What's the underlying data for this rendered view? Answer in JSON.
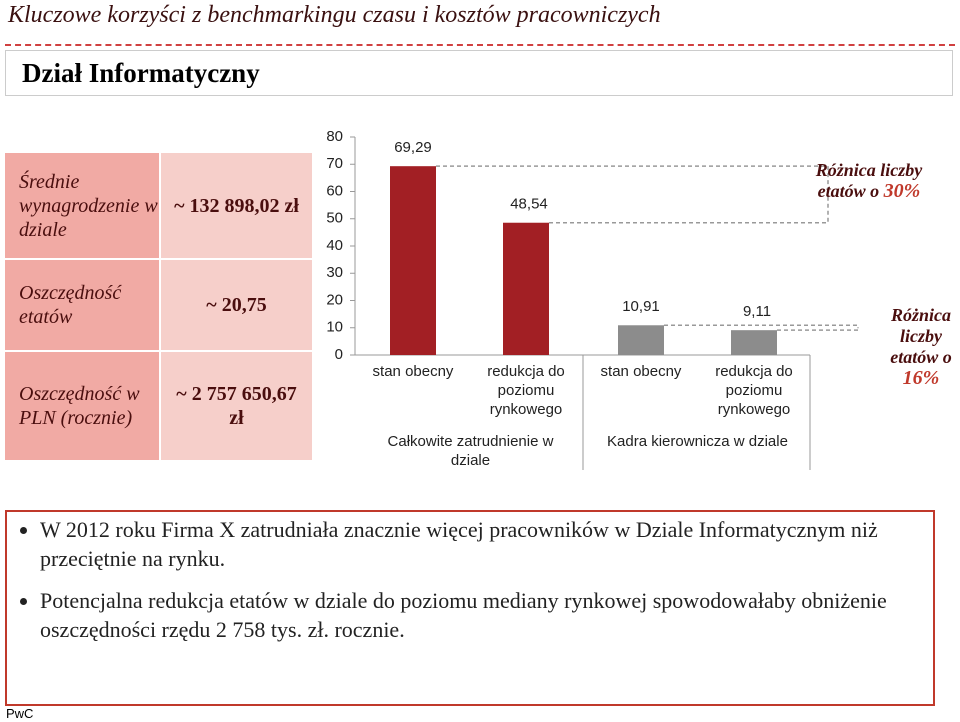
{
  "header": {
    "title": "Kluczowe korzyści z benchmarkingu czasu i kosztów pracowniczych",
    "section": "Dział Informatyczny"
  },
  "table": {
    "rows": [
      [
        "Średnie wynagrodzenie w dziale",
        "~ 132 898,02 zł"
      ],
      [
        "Oszczędność etatów",
        "~ 20,75"
      ],
      [
        "Oszczędność w PLN (rocznie)",
        "~ 2 757 650,67 zł"
      ]
    ]
  },
  "chart_data": {
    "type": "bar",
    "categories": [
      "stan obecny",
      "redukcja do poziomu rynkowego",
      "stan obecny",
      "redukcja do poziomu rynkowego"
    ],
    "groups": [
      "Całkowite zatrudnienie w dziale",
      "Kadra kierownicza w dziale"
    ],
    "values": [
      69.29,
      48.54,
      10.91,
      9.11
    ],
    "value_labels": [
      "69,29",
      "48,54",
      "10,91",
      "9,11"
    ],
    "colors": [
      "#a21f24",
      "#a21f24",
      "#8c8c8c",
      "#8c8c8c"
    ],
    "ylim": [
      0,
      80
    ],
    "yticks": [
      0,
      10,
      20,
      30,
      40,
      50,
      60,
      70,
      80
    ],
    "annotations": [
      {
        "text": "Różnica liczby etatów o ",
        "emphasis": "30%"
      },
      {
        "text": "Różnica liczby etatów o ",
        "emphasis": "16%"
      }
    ]
  },
  "bullets": [
    "W 2012 roku Firma X zatrudniała znacznie więcej pracowników w Dziale Informatycznym niż przeciętnie na rynku.",
    "Potencjalna redukcja etatów w dziale do poziomu mediany rynkowej spowodowałaby obniżenie oszczędności rzędu 2 758 tys. zł. rocznie."
  ],
  "footer": "PwC"
}
